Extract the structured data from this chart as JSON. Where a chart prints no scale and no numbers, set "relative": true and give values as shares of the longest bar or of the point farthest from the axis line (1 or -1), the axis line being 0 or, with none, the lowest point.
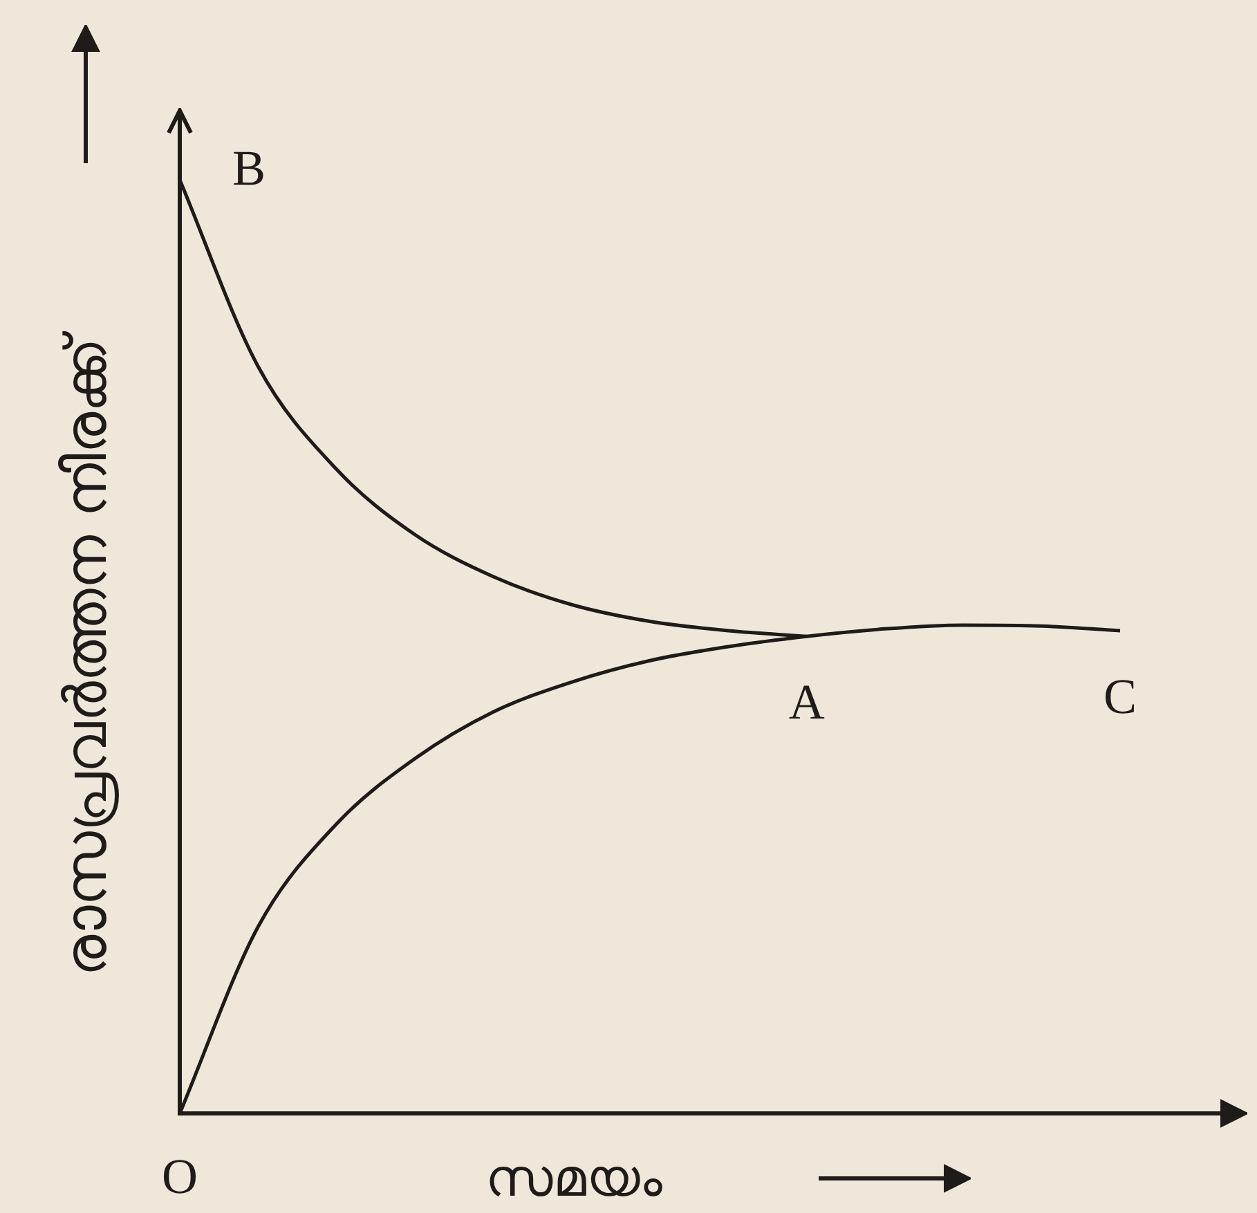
{
  "chart_data": {
    "type": "line",
    "relative": true,
    "xlabel": "സമയം",
    "ylabel": "രാസപ്രവർത്തന നിരക്ക്",
    "categories": [
      null,
      null,
      null,
      null,
      null,
      null,
      null,
      null,
      null,
      null,
      null,
      null,
      null
    ],
    "series": [
      {
        "color": "#1e1b18",
        "values": [
          1.0,
          0.8,
          0.69,
          0.62,
          0.575,
          0.545,
          0.527,
          0.517,
          0.511,
          null,
          null,
          null,
          null
        ]
      },
      {
        "color": "#1e1b18",
        "values": [
          0,
          0.2,
          0.31,
          0.38,
          0.43,
          0.462,
          0.485,
          0.5,
          0.511,
          0.519,
          0.523,
          0.522,
          0.517
        ]
      }
    ],
    "annotations": [
      "B",
      "A",
      "C",
      "O"
    ],
    "grid": false,
    "legend": false,
    "marker": "none",
    "line_style": "solid"
  }
}
